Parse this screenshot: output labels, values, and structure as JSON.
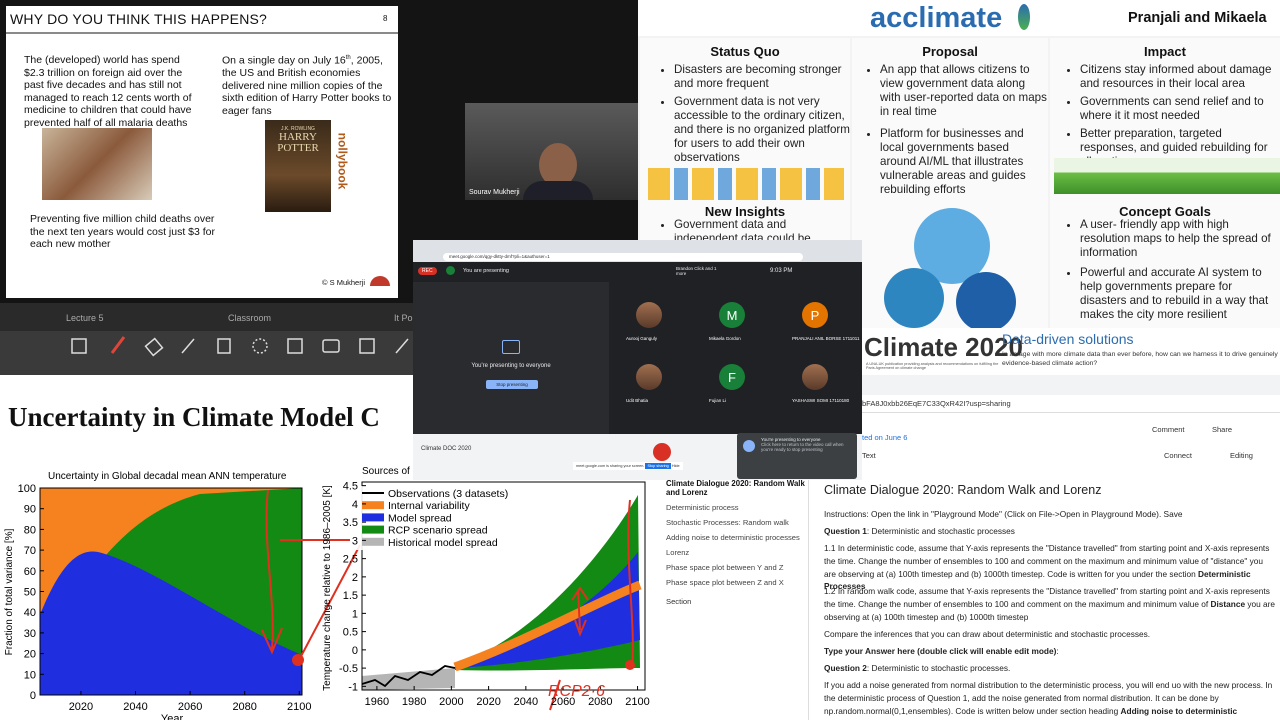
{
  "slide_poverty": {
    "title": "WHY DO YOU THINK THIS HAPPENS?",
    "page": "8",
    "left_text": "The (developed) world has spend $2.3 trillion on foreign aid over the past five decades and has still not managed to reach 12 cents worth of medicine to children that could have prevented half of all malaria deaths",
    "right_text": [
      "On a single day on July 16",
      "th",
      ", 2005, the US and British economies delivered nine million copies of the sixth edition of Harry Potter books to eager fans"
    ],
    "bottom_text": "Preventing five million child deaths over the next ten years would cost just $3 for each new mother",
    "book_author": "J.K. ROWLING",
    "book_title": "HARRY POTTER",
    "side_text": "nollybook",
    "footer": "© S Mukherji"
  },
  "webcam": {
    "name": "Sourav Mukherji"
  },
  "poster": {
    "brand": "acclimate",
    "authors": "Pranjali and Mikaela",
    "status_quo": {
      "heading": "Status Quo",
      "bullets": [
        "Disasters are becoming stronger and more frequent",
        "Government data is not very accessible to the ordinary citizen, and there is no organized platform for users to add their own observations"
      ]
    },
    "proposal": {
      "heading": "Proposal",
      "bullets": [
        "An app that allows citizens to view government data along with user-reported data on maps in real time",
        "Platform for businesses and local governments based around AI/ML that illustrates vulnerable areas and guides rebuilding efforts"
      ]
    },
    "impact": {
      "heading": "Impact",
      "bullets": [
        "Citizens stay informed about damage and resources in their local area",
        "Governments can send relief and to where it it most needed",
        "Better preparation, targeted responses, and guided rebuilding for all parties"
      ]
    },
    "new_insights": {
      "heading": "New Insights",
      "bullets": [
        "Government data and independent data could be"
      ]
    },
    "concept_goals": {
      "heading": "Concept Goals",
      "bullets": [
        "A user- friendly app with high resolution maps to help the spread of information",
        "Powerful and accurate AI system to help governments prepare for disasters and to rebuild in a way that makes the city more resilient"
      ]
    }
  },
  "toolbar": {
    "tabs": [
      "Lecture 5",
      "Classroom",
      "It Po"
    ]
  },
  "climate_slide": {
    "title": "Uncertainty in Climate Model C",
    "left_chart": {
      "title": "Uncertainty in Global decadal mean ANN temperature",
      "y_label": "Fraction of total variance [%]",
      "x_label": "Year",
      "ylim": [
        0,
        100
      ],
      "yticks": [
        0,
        10,
        20,
        30,
        40,
        50,
        60,
        70,
        80,
        90,
        100
      ],
      "xlim": [
        2005,
        2101
      ],
      "xticks": [
        2020,
        2040,
        2060,
        2080,
        2100
      ]
    },
    "right_chart": {
      "title": "Sources of",
      "y_label": "Temperature change relative to 1986–2005 [K]",
      "ylim": [
        -1.1,
        4.6
      ],
      "yticks": [
        -1,
        -0.5,
        0,
        0.5,
        1,
        1.5,
        2,
        2.5,
        3,
        3.5,
        4,
        4.5
      ],
      "xlim": [
        1952,
        2104
      ],
      "xticks": [
        1960,
        1980,
        2000,
        2020,
        2040,
        2060,
        2080,
        2100
      ],
      "legend": [
        {
          "name": "Observations (3 datasets)",
          "color": "#000000"
        },
        {
          "name": "Internal variability",
          "color": "#f5821f"
        },
        {
          "name": "Model spread",
          "color": "#1f2fe0"
        },
        {
          "name": "RCP scenario spread",
          "color": "#138a13"
        },
        {
          "name": "Historical model spread",
          "color": "#b5b5b5"
        }
      ],
      "annotation": "RCP2·6"
    }
  },
  "meet": {
    "url": "meet.google.com/qgy-dktty-dmf?pli=1&authuser=1",
    "rec": "REC",
    "presenting": "You are presenting",
    "participants": "Brandon Click and 1 more",
    "time": "9:03 PM",
    "center_text": "You're presenting to everyone",
    "stop_button": "Stop presenting",
    "tiles": [
      {
        "name": "Aurooj Ganguly"
      },
      {
        "initial": "M",
        "name": "Mikaela Gordon"
      },
      {
        "initial": "P",
        "name": "PRANJALI ANIL BORSE 1711011"
      },
      {
        "name": "Udit Bhatia"
      },
      {
        "initial": "F",
        "name": "Fujian Li"
      },
      {
        "name": "YASHASWI SOMI 17110180"
      }
    ],
    "doc_title": "Climate DOC 2020",
    "share_bar": "meet.google.com is sharing your screen.",
    "share_stop": "Stop sharing",
    "share_hide": "Hide",
    "toast_title": "You're presenting to everyone",
    "toast_text": "Click here to return to the video call when you're ready to stop presenting"
  },
  "climate_header": {
    "title": "Climate 2020",
    "tagline": "A UNA-UK publication providing analysis and recommendations on fulfilling the Paris Agreement on climate change",
    "heading": "Data-driven solutions",
    "text": "In an age with more climate data than ever before, how can we harness it to drive genuinely evidence-based climate action?"
  },
  "colab": {
    "url": "bFA8J0xbb26EqE7C33QxR42I?usp=sharing",
    "edited": "ted on June 6",
    "comment": "Comment",
    "share": "Share",
    "text_button": "Text",
    "connect": "Connect",
    "editing": "Editing",
    "toc": [
      "Climate Dialogue 2020: Random Walk and Lorenz",
      "Deterministic process",
      "Stochastic Processes: Random walk",
      "Adding noise to deterministic processes",
      "Lorenz",
      "Phase space plot between Y and Z",
      "Phase space plot between Z and X"
    ],
    "section": "Section",
    "title": "Climate Dialogue 2020: Random Walk and Lorenz",
    "paragraphs": [
      [
        "Instructions: Open the link in \"Playground Mode\" (Click on File->Open in Playground Mode). Save"
      ],
      [
        "Question 1",
        ": Deterministic and stochastic processes"
      ],
      [
        "1.1 In deterministic code, assume that Y-axis represents the \"Distance travelled\" from starting point and X-axis represents the time. Change the number of ensembles to 100 and comment on the maximum and minimum value of \"distance\" you are observing at (a) 100th timestep and (b) 1000th timestep. Code is written for you under the section ",
        "Deterministic Processes"
      ],
      [
        "1.2 In random walk code, assume that Y-axis represents the \"Distance travelled\" from starting point and X-axis represents the time. Change the number of ensembles to 100 and comment on the maximum and minimum value of ",
        "Distance",
        " you are observing at (a) 100th timestep and (b) 1000th timestep"
      ],
      [
        "Compare the inferences that you can draw about deterministic and stochastic processes."
      ],
      [
        "Type your Answer here (double click will enable edit mode)",
        ":"
      ],
      [
        "Question 2",
        ": Deterministic to stochastic processes."
      ],
      [
        "If you add a noise generated from normal distribution to the deterministic process, you will end uo with the new process. In the deterministic process of Question 1, add the noise generated from normal distribution. It can be done by np.random.normal(0,1,ensembles). Code is written below under section heading ",
        "Adding noise to deterministic processes"
      ]
    ]
  }
}
